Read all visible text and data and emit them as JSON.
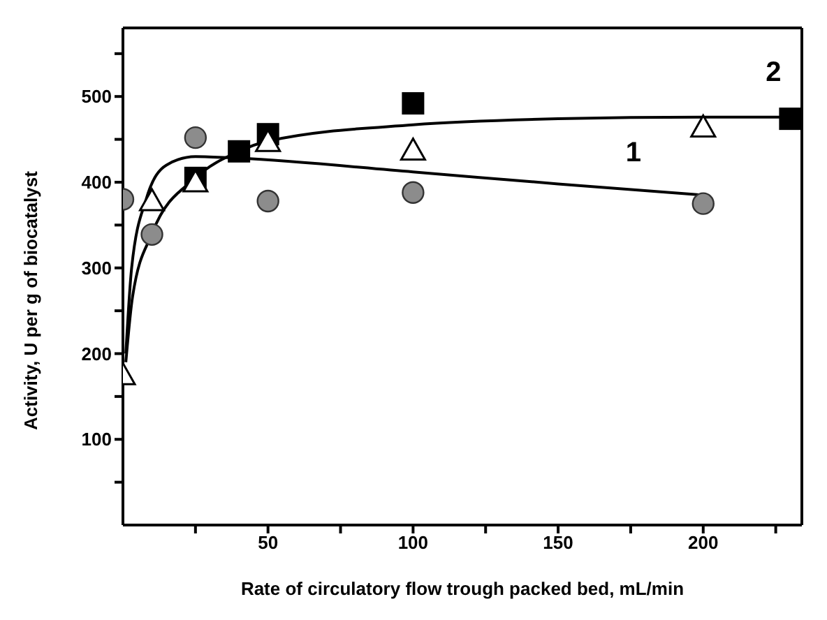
{
  "chart_data": {
    "type": "scatter",
    "xlabel": "Rate of  circulatory flow trough packed bed, mL/min",
    "ylabel": "Activity, U per g of biocatalyst",
    "xlim": [
      0,
      234
    ],
    "xticks": [
      {
        "value": 25,
        "label": null
      },
      50,
      {
        "value": 75,
        "label": null
      },
      100,
      {
        "value": 125,
        "label": null
      },
      150,
      {
        "value": 175,
        "label": null
      },
      200,
      {
        "value": 225,
        "label": null
      }
    ],
    "ylim": [
      0,
      580
    ],
    "yticks": [
      {
        "value": 50,
        "label": null
      },
      100,
      {
        "value": 150,
        "label": null
      },
      200,
      {
        "value": 250,
        "label": null
      },
      300,
      {
        "value": 350,
        "label": null
      },
      400,
      {
        "value": 450,
        "label": null
      },
      500,
      {
        "value": 550,
        "label": null
      }
    ],
    "grid": false,
    "legend": false,
    "series": [
      {
        "marker": "circle",
        "color": "#8c8c8c",
        "x": [
          0,
          10,
          25,
          50,
          100,
          200
        ],
        "values": [
          380,
          339,
          452,
          378,
          388,
          375
        ]
      },
      {
        "marker": "square",
        "color": "#000000",
        "x": [
          25,
          40,
          50,
          100,
          230
        ],
        "values": [
          405,
          436,
          456,
          492,
          474
        ]
      },
      {
        "marker": "triangle",
        "color": "#ffffff",
        "x": [
          0,
          10,
          25,
          50,
          100,
          200
        ],
        "values": [
          175,
          378,
          400,
          447,
          437,
          464
        ]
      },
      {
        "type": "line",
        "name": "1",
        "marker": "none",
        "line_style": "solid",
        "color": "#000000",
        "x": [
          1,
          3,
          8,
          15,
          25,
          40,
          100,
          150,
          200
        ],
        "values": [
          200,
          300,
          380,
          420,
          430,
          428,
          412,
          398,
          385
        ]
      },
      {
        "type": "line",
        "name": "2",
        "marker": "none",
        "line_style": "solid",
        "color": "#000000",
        "x": [
          1,
          3.3,
          10,
          25,
          40,
          50,
          100,
          150,
          200,
          230
        ],
        "values": [
          190,
          266,
          340,
          405,
          436,
          448,
          467,
          474,
          476,
          476
        ]
      }
    ]
  }
}
